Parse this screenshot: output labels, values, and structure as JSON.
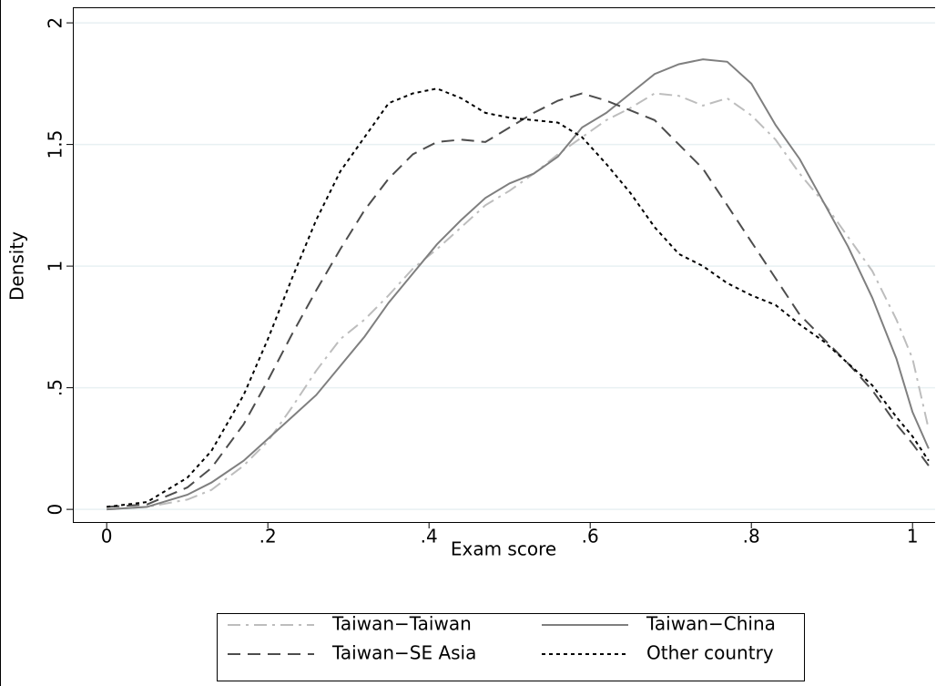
{
  "chart_data": {
    "type": "line",
    "xlabel": "Exam score",
    "ylabel": "Density",
    "x": [
      0,
      0.05,
      0.1,
      0.13,
      0.17,
      0.2,
      0.23,
      0.26,
      0.29,
      0.32,
      0.35,
      0.38,
      0.41,
      0.44,
      0.47,
      0.5,
      0.53,
      0.56,
      0.59,
      0.62,
      0.65,
      0.68,
      0.71,
      0.74,
      0.77,
      0.8,
      0.83,
      0.86,
      0.89,
      0.92,
      0.95,
      0.98,
      1.0,
      1.02
    ],
    "series": [
      {
        "name": "Taiwan−Taiwan",
        "color": "#bdbdbd",
        "style": "dash-dot",
        "values": [
          0,
          0.01,
          0.04,
          0.08,
          0.18,
          0.28,
          0.42,
          0.57,
          0.7,
          0.78,
          0.88,
          0.99,
          1.07,
          1.16,
          1.25,
          1.31,
          1.38,
          1.46,
          1.53,
          1.6,
          1.65,
          1.71,
          1.7,
          1.66,
          1.69,
          1.62,
          1.52,
          1.38,
          1.26,
          1.12,
          0.98,
          0.78,
          0.62,
          0.33
        ]
      },
      {
        "name": "Taiwan−China",
        "color": "#7f7f7f",
        "style": "solid",
        "values": [
          0,
          0.01,
          0.06,
          0.11,
          0.2,
          0.29,
          0.38,
          0.47,
          0.59,
          0.71,
          0.85,
          0.97,
          1.09,
          1.19,
          1.28,
          1.34,
          1.38,
          1.45,
          1.57,
          1.63,
          1.71,
          1.79,
          1.83,
          1.85,
          1.84,
          1.75,
          1.58,
          1.44,
          1.26,
          1.08,
          0.87,
          0.62,
          0.4,
          0.25
        ]
      },
      {
        "name": "Taiwan−SE Asia",
        "color": "#4d4d4d",
        "style": "dash",
        "values": [
          0.01,
          0.02,
          0.09,
          0.17,
          0.35,
          0.53,
          0.72,
          0.9,
          1.07,
          1.23,
          1.36,
          1.46,
          1.51,
          1.52,
          1.51,
          1.57,
          1.63,
          1.68,
          1.71,
          1.68,
          1.64,
          1.6,
          1.5,
          1.4,
          1.25,
          1.1,
          0.95,
          0.8,
          0.7,
          0.6,
          0.49,
          0.35,
          0.27,
          0.18
        ]
      },
      {
        "name": "Other country",
        "color": "#000000",
        "style": "dot",
        "values": [
          0.01,
          0.03,
          0.13,
          0.24,
          0.47,
          0.7,
          0.95,
          1.19,
          1.39,
          1.53,
          1.67,
          1.71,
          1.73,
          1.69,
          1.63,
          1.61,
          1.6,
          1.59,
          1.53,
          1.42,
          1.3,
          1.16,
          1.05,
          1.0,
          0.93,
          0.88,
          0.84,
          0.76,
          0.69,
          0.6,
          0.51,
          0.38,
          0.3,
          0.2
        ]
      }
    ],
    "xlim": [
      -0.042,
      1.028
    ],
    "ylim": [
      -0.052,
      2.064
    ],
    "xticks": [
      0,
      {
        "value": 0.2,
        "label": ".2"
      },
      {
        "value": 0.4,
        "label": ".4"
      },
      {
        "value": 0.6,
        "label": ".6"
      },
      {
        "value": 0.8,
        "label": ".8"
      },
      1
    ],
    "yticks": [
      0,
      {
        "value": 0.5,
        "label": ".5"
      },
      1,
      {
        "value": 1.5,
        "label": "1.5"
      },
      2
    ],
    "grid": true,
    "legend": "bottom"
  }
}
